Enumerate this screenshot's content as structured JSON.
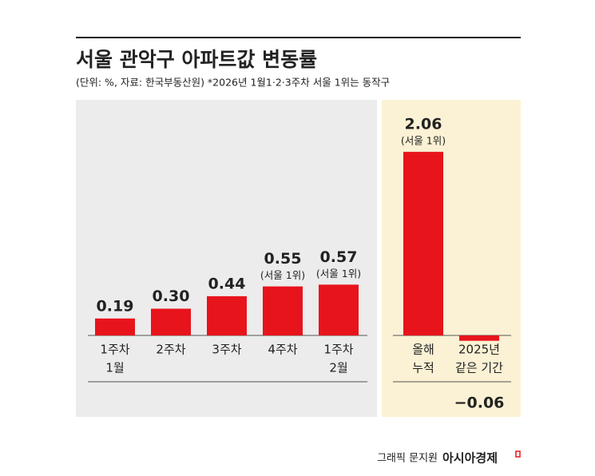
{
  "title": "서울 관악구 아파트값 변동률",
  "subtitle": "(단위: %, 자료: 한국부동산원)  *2026년 1월1·2·3주차 서울 1위는 동작구",
  "chart_data": [
    {
      "type": "bar",
      "color": "#e8141c",
      "categories": [
        [
          "1주차",
          "1월"
        ],
        [
          "2주차"
        ],
        [
          "3주차"
        ],
        [
          "4주차"
        ],
        [
          "1주차",
          "2월"
        ]
      ],
      "values": [
        0.19,
        0.3,
        0.44,
        0.55,
        0.57
      ],
      "value_labels": [
        "0.19",
        "0.30",
        "0.44",
        "0.55",
        "0.57"
      ],
      "value_notes": [
        null,
        null,
        null,
        "(서울 1위)",
        "(서울 1위)"
      ]
    },
    {
      "type": "bar",
      "color": "#e8141c",
      "categories": [
        [
          "올해",
          "누적"
        ],
        [
          "2025년",
          "같은 기간"
        ]
      ],
      "values": [
        2.06,
        -0.06
      ],
      "value_labels": [
        "2.06",
        "−0.06"
      ],
      "value_notes": [
        "(서울 1위)",
        null
      ]
    }
  ],
  "footer": {
    "credit": "그래픽 문지원",
    "brand": "아시아경제"
  }
}
